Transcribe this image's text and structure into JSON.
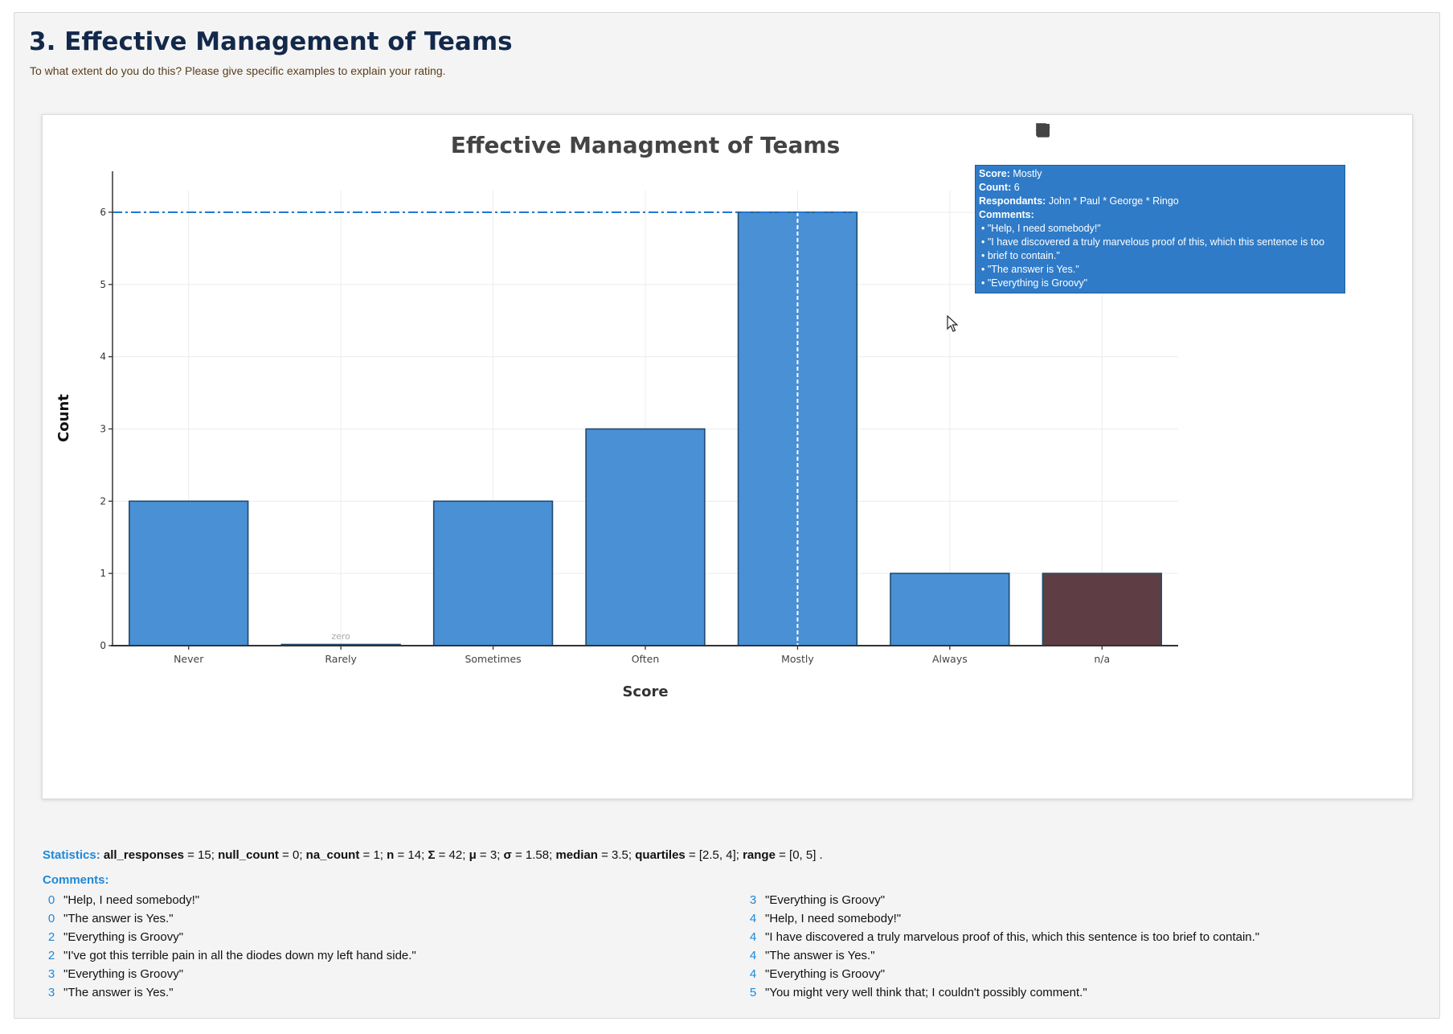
{
  "section": {
    "title": "3. Effective Management of Teams",
    "subtitle": "To what extent do you do this? Please give specific examples to explain your rating."
  },
  "modebar": {
    "icons": [
      "camera-icon",
      "zoom-icon",
      "pan-icon",
      "box-select-icon",
      "lasso-icon",
      "zoom-in-icon",
      "autoscale-icon",
      "draw-open-path-icon",
      "draw-closed-path-icon",
      "erase-shape-icon",
      "plus-icon",
      "minus-icon",
      "reset-axes-icon",
      "home-icon",
      "eraser-icon",
      "save-icon"
    ]
  },
  "chart_data": {
    "type": "bar",
    "title": "Effective Managment of Teams",
    "xlabel": "Score",
    "ylabel": "Count",
    "categories": [
      "Never",
      "Rarely",
      "Sometimes",
      "Often",
      "Mostly",
      "Always",
      "n/a"
    ],
    "values": [
      2,
      0,
      2,
      3,
      6,
      1,
      1
    ],
    "bar_colors": [
      "#4a90d4",
      "#4a90d4",
      "#4a90d4",
      "#4a90d4",
      "#4a90d4",
      "#4a90d4",
      "#5e3e44"
    ],
    "bar_outline": "#1f4a6e",
    "ylim": [
      0,
      6.3
    ],
    "yticks": [
      0,
      1,
      2,
      3,
      4,
      5,
      6
    ],
    "grid": true,
    "zero_label": "zero",
    "hover_line_value": 6,
    "hover_line_color": "#1e78d4"
  },
  "tooltip": {
    "score_label": "Score:",
    "score_value": " Mostly",
    "count_label": "Count:",
    "count_value": " 6",
    "resp_label": "Respondants:",
    "resp_value": " John * Paul * George * Ringo",
    "comments_label": "Comments:",
    "lines": [
      "• \"Help, I need somebody!\"",
      "• \"I have discovered a truly marvelous proof of this, which this sentence is too",
      "• brief to contain.\"",
      "• \"The answer is Yes.\"",
      "• \"Everything is Groovy\""
    ]
  },
  "stats": {
    "label": "Statistics:",
    "items": [
      {
        "k": "all_responses",
        "v": " = 15;  "
      },
      {
        "k": "null_count",
        "v": " = 0;  "
      },
      {
        "k": "na_count",
        "v": " = 1;  "
      },
      {
        "k": "n",
        "v": " = 14;  "
      },
      {
        "k": "Σ",
        "v": " = 42;  "
      },
      {
        "k": "μ",
        "v": " = 3;  "
      },
      {
        "k": "σ",
        "v": " = 1.58;  "
      },
      {
        "k": "median",
        "v": " = 3.5;  "
      },
      {
        "k": "quartiles",
        "v": " = [2.5, 4];  "
      },
      {
        "k": "range",
        "v": " = [0, 5] ."
      }
    ]
  },
  "comments": {
    "label": "Comments:",
    "left": [
      {
        "n": "0",
        "t": "\"Help, I need somebody!\""
      },
      {
        "n": "0",
        "t": "\"The answer is Yes.\""
      },
      {
        "n": "2",
        "t": "\"Everything is Groovy\""
      },
      {
        "n": "2",
        "t": "\"I've got this terrible pain in all the diodes down my left hand side.\""
      },
      {
        "n": "3",
        "t": "\"Everything is Groovy\""
      },
      {
        "n": "3",
        "t": "\"The answer is Yes.\""
      }
    ],
    "right": [
      {
        "n": "3",
        "t": "\"Everything is Groovy\""
      },
      {
        "n": "4",
        "t": "\"Help, I need somebody!\""
      },
      {
        "n": "4",
        "t": "\"I have discovered a truly marvelous proof of this, which this sentence is too brief to contain.\""
      },
      {
        "n": "4",
        "t": "\"The answer is Yes.\""
      },
      {
        "n": "4",
        "t": "\"Everything is Groovy\""
      },
      {
        "n": "5",
        "t": "\"You might very well think that; I couldn't possibly comment.\""
      }
    ]
  }
}
